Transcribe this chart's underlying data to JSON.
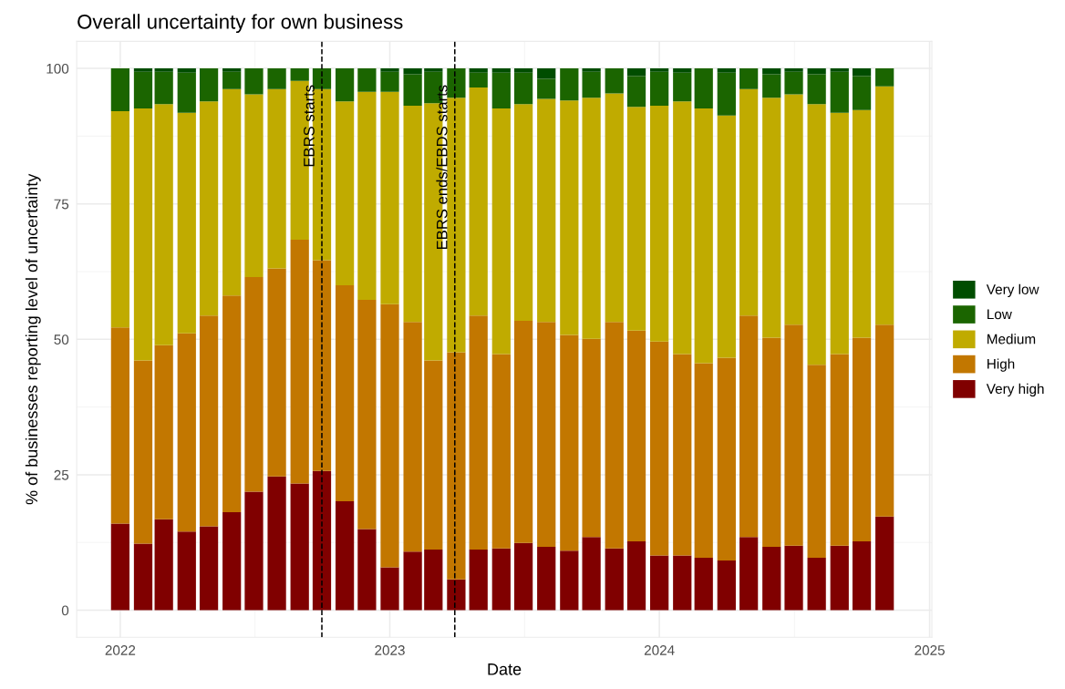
{
  "chart_data": {
    "type": "bar",
    "stacked": true,
    "title": "Overall uncertainty for own business",
    "xlabel": "Date",
    "ylabel": "% of businesses reporting level of uncertainty",
    "x": [
      "2022-01-01",
      "2022-02-01",
      "2022-03-01",
      "2022-04-01",
      "2022-05-01",
      "2022-06-01",
      "2022-07-01",
      "2022-08-01",
      "2022-09-01",
      "2022-10-01",
      "2022-11-01",
      "2022-12-01",
      "2023-01-01",
      "2023-02-01",
      "2023-03-01",
      "2023-04-01",
      "2023-05-01",
      "2023-06-01",
      "2023-07-01",
      "2023-08-01",
      "2023-09-01",
      "2023-10-01",
      "2023-11-01",
      "2023-12-01",
      "2024-01-01",
      "2024-02-01",
      "2024-03-01",
      "2024-04-01",
      "2024-05-01",
      "2024-06-01",
      "2024-07-01",
      "2024-08-01",
      "2024-09-01",
      "2024-10-01",
      "2024-11-01"
    ],
    "series": [
      {
        "name": "Very high",
        "color": "#800000",
        "values": [
          16.0,
          12.3,
          16.8,
          14.5,
          15.5,
          18.1,
          21.9,
          24.7,
          23.4,
          25.7,
          20.1,
          15.0,
          7.9,
          10.8,
          11.2,
          5.7,
          11.2,
          11.4,
          12.4,
          11.7,
          11.0,
          13.5,
          11.4,
          12.7,
          10.1,
          10.1,
          9.7,
          9.2,
          13.5,
          11.7,
          11.9,
          9.7,
          11.9,
          12.7,
          17.3
        ]
      },
      {
        "name": "High",
        "color": "#c27700",
        "values": [
          36.2,
          33.8,
          32.1,
          36.6,
          38.9,
          40.0,
          39.6,
          38.4,
          45.0,
          38.9,
          39.9,
          42.3,
          48.6,
          42.4,
          34.9,
          41.9,
          43.2,
          35.9,
          41.0,
          41.5,
          39.8,
          36.6,
          41.8,
          38.9,
          39.5,
          37.2,
          35.9,
          37.4,
          40.9,
          38.6,
          40.8,
          35.6,
          35.4,
          37.6,
          35.4
        ]
      },
      {
        "name": "Medium",
        "color": "#c0ab00",
        "values": [
          39.9,
          46.5,
          44.5,
          40.7,
          39.5,
          38.1,
          33.7,
          33.1,
          29.3,
          31.6,
          33.9,
          38.4,
          39.2,
          39.9,
          47.5,
          47.0,
          42.1,
          45.3,
          40.0,
          41.2,
          43.3,
          44.5,
          42.2,
          41.3,
          43.5,
          46.6,
          47.0,
          44.7,
          41.8,
          44.3,
          42.5,
          48.1,
          44.5,
          42.0,
          44.0
        ]
      },
      {
        "name": "Low",
        "color": "#1b6500",
        "values": [
          7.9,
          6.8,
          6.0,
          7.4,
          6.1,
          3.2,
          4.8,
          3.8,
          2.3,
          3.8,
          6.1,
          4.3,
          3.7,
          5.8,
          5.8,
          5.4,
          2.7,
          6.6,
          5.8,
          3.7,
          5.9,
          4.8,
          4.6,
          5.7,
          6.3,
          5.3,
          7.4,
          7.9,
          3.8,
          4.3,
          4.2,
          5.5,
          7.6,
          6.3,
          3.3
        ]
      },
      {
        "name": "Very low",
        "color": "#004d00",
        "values": [
          0,
          0.6,
          0.6,
          0.8,
          0,
          0.6,
          0,
          0,
          0,
          0,
          0,
          0,
          0.6,
          1.1,
          0.6,
          0,
          0.8,
          0.8,
          0.8,
          1.9,
          0,
          0.6,
          0,
          1.4,
          0.6,
          0.8,
          0,
          0.8,
          0,
          1.1,
          0.6,
          1.1,
          0.6,
          1.4,
          0
        ]
      }
    ],
    "xlim": [
      "2021-11-03",
      "2025-01-04"
    ],
    "xticks": [
      "2022",
      "2023",
      "2024",
      "2025"
    ],
    "ylim": [
      -5,
      105
    ],
    "yticks": [
      0,
      25,
      50,
      75,
      100
    ],
    "ref_lines": [
      {
        "axis": "x",
        "value": "2022-10-01",
        "label": "EBRS starts",
        "color": "#000000",
        "line_style": "dashed"
      },
      {
        "axis": "x",
        "value": "2023-03-30",
        "label": "EBRS ends/EBDS starts",
        "color": "#000000",
        "line_style": "dashed"
      }
    ],
    "grid": true,
    "legend": "right"
  }
}
